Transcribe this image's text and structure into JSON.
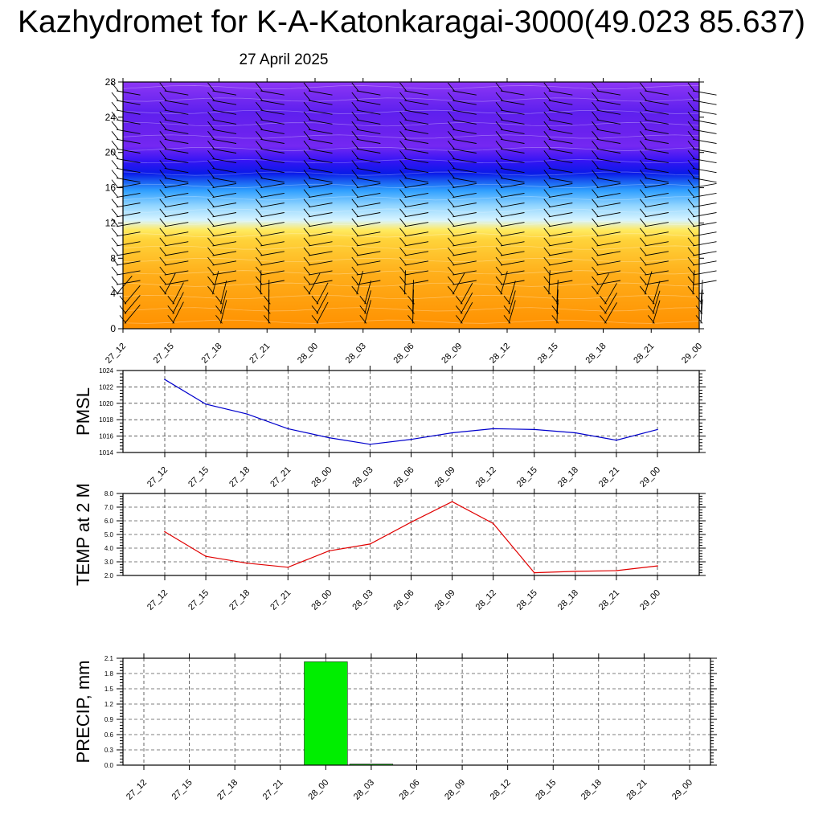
{
  "title": "Kazhydromet for K-A-Katonkaragai-3000(49.023 85.637)",
  "subtitle": "27 April 2025",
  "time_labels": [
    "27_12",
    "27_15",
    "27_18",
    "27_21",
    "28_00",
    "28_03",
    "28_06",
    "28_09",
    "28_12",
    "28_15",
    "28_18",
    "28_21",
    "29_00"
  ],
  "colors": {
    "pmsl_line": "#0000cc",
    "temp_line": "#e00000",
    "precip_bar": "#00ee00",
    "warm_low": "#ff9000",
    "warm_high": "#ffea60",
    "cool_mid": "#2f9fff",
    "deep_blue": "#1a10f0",
    "violet": "#8d36f5"
  },
  "chart_data": [
    {
      "type": "heatmap",
      "name": "cross-section",
      "xlabel": "",
      "ylabel": "",
      "yticks": [
        0,
        4,
        8,
        12,
        16,
        20,
        24,
        28
      ],
      "ylim": [
        0,
        28
      ],
      "x": [
        "27_12",
        "27_15",
        "27_18",
        "27_21",
        "28_00",
        "28_03",
        "28_06",
        "28_09",
        "28_12",
        "28_15",
        "28_18",
        "28_21",
        "29_00"
      ],
      "overlay": "wind barbs"
    },
    {
      "type": "line",
      "ylabel": "PMSL",
      "x": [
        "27_12",
        "27_15",
        "27_18",
        "27_21",
        "28_00",
        "28_03",
        "28_06",
        "28_09",
        "28_12",
        "28_15",
        "28_18",
        "28_21",
        "29_00"
      ],
      "values": [
        1022.9,
        1019.9,
        1018.7,
        1016.9,
        1015.8,
        1015.0,
        1015.6,
        1016.4,
        1016.9,
        1016.8,
        1016.4,
        1015.5,
        1016.8
      ],
      "ylim": [
        1014,
        1024
      ],
      "yticks": [
        "1014",
        "1016",
        "1018",
        "1020",
        "1022",
        "1024"
      ],
      "grid": true
    },
    {
      "type": "line",
      "ylabel": "TEMP at 2 M",
      "x": [
        "27_12",
        "27_15",
        "27_18",
        "27_21",
        "28_00",
        "28_03",
        "28_06",
        "28_09",
        "28_12",
        "28_15",
        "28_18",
        "28_21",
        "29_00"
      ],
      "values": [
        5.2,
        3.4,
        2.9,
        2.6,
        3.8,
        4.3,
        5.9,
        7.4,
        5.8,
        2.2,
        2.3,
        2.35,
        2.7
      ],
      "ylim": [
        2.0,
        8.0
      ],
      "yticks": [
        "2.0",
        "3.0",
        "4.0",
        "5.0",
        "6.0",
        "7.0",
        "8.0"
      ],
      "grid": true
    },
    {
      "type": "bar",
      "ylabel": "PRECIP, mm",
      "x": [
        "27_12",
        "27_15",
        "27_18",
        "27_21",
        "28_00",
        "28_03",
        "28_06",
        "28_09",
        "28_12",
        "28_15",
        "28_18",
        "28_21",
        "29_00"
      ],
      "values": [
        0,
        0,
        0,
        0,
        2.03,
        0.02,
        0,
        0,
        0,
        0,
        0,
        0,
        0
      ],
      "ylim": [
        0,
        2.1
      ],
      "yticks": [
        "0.0",
        "0.3",
        "0.6",
        "0.9",
        "1.2",
        "1.5",
        "1.8",
        "2.1"
      ],
      "grid": true
    }
  ]
}
